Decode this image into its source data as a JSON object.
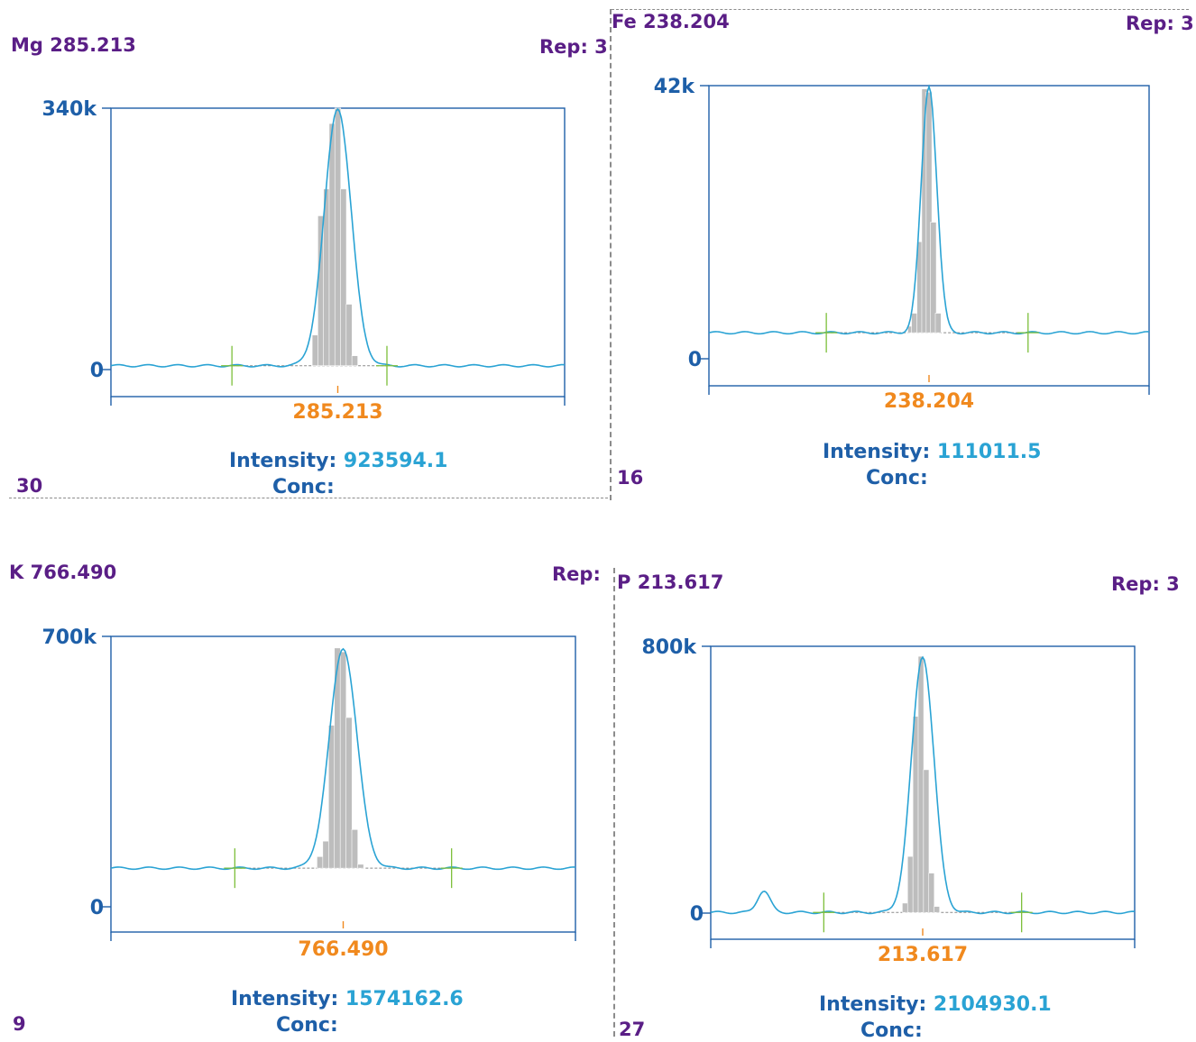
{
  "chart_data": [
    {
      "type": "line",
      "element": "Mg 285.213",
      "rep": "Rep: 3",
      "index": "30",
      "x_center_label": "285.213",
      "y_tick_labels": [
        "340k",
        "0"
      ],
      "ylim": [
        0,
        340000
      ],
      "intensity_label": "Intensity:",
      "intensity_value": "923594.1",
      "conc_label": "Conc:",
      "peak_height": 340000,
      "peak_width": 0.05,
      "baseline": 5000,
      "bars": [
        {
          "x": -0.07,
          "y": 5000
        },
        {
          "x": -0.06,
          "y": 45000
        },
        {
          "x": -0.045,
          "y": 200000
        },
        {
          "x": -0.03,
          "y": 235000
        },
        {
          "x": -0.015,
          "y": 320000
        },
        {
          "x": 0.0,
          "y": 340000
        },
        {
          "x": 0.015,
          "y": 235000
        },
        {
          "x": 0.03,
          "y": 85000
        },
        {
          "x": 0.045,
          "y": 18000
        }
      ],
      "xlim": [
        -0.6,
        0.6
      ],
      "markers_x": [
        -0.28,
        0.13
      ]
    },
    {
      "type": "line",
      "element": "Fe 238.204",
      "rep": "Rep: 3",
      "index": "16",
      "x_center_label": "238.204",
      "y_tick_labels": [
        "42k",
        "0"
      ],
      "ylim": [
        0,
        42000
      ],
      "intensity_label": "Intensity:",
      "intensity_value": "111011.5",
      "conc_label": "Conc:",
      "peak_height": 42000,
      "peak_width": 0.03,
      "baseline": 4000,
      "bars": [
        {
          "x": -0.05,
          "y": 5000
        },
        {
          "x": -0.04,
          "y": 7000
        },
        {
          "x": -0.025,
          "y": 18000
        },
        {
          "x": -0.012,
          "y": 41500
        },
        {
          "x": 0.0,
          "y": 41000
        },
        {
          "x": 0.012,
          "y": 21000
        },
        {
          "x": 0.025,
          "y": 7000
        }
      ],
      "xlim": [
        -0.6,
        0.6
      ],
      "markers_x": [
        -0.28,
        0.27
      ]
    },
    {
      "type": "line",
      "element": "K 766.490",
      "rep": "Rep:",
      "index": "9",
      "x_center_label": "766.490",
      "y_tick_labels": [
        "700k",
        "0"
      ],
      "ylim": [
        0,
        700000
      ],
      "intensity_label": "Intensity:",
      "intensity_value": "1574162.6",
      "conc_label": "Conc:",
      "peak_height": 670000,
      "peak_width": 0.05,
      "baseline": 100000,
      "bars": [
        {
          "x": -0.06,
          "y": 130000
        },
        {
          "x": -0.045,
          "y": 170000
        },
        {
          "x": -0.03,
          "y": 470000
        },
        {
          "x": -0.015,
          "y": 670000
        },
        {
          "x": 0.0,
          "y": 660000
        },
        {
          "x": 0.015,
          "y": 490000
        },
        {
          "x": 0.03,
          "y": 200000
        },
        {
          "x": 0.045,
          "y": 110000
        }
      ],
      "xlim": [
        -0.6,
        0.6
      ],
      "markers_x": [
        -0.28,
        0.28
      ]
    },
    {
      "type": "line",
      "element": "P 213.617",
      "rep": "Rep: 3",
      "index": "27",
      "x_center_label": "213.617",
      "y_tick_labels": [
        "800k",
        "0"
      ],
      "ylim": [
        0,
        800000
      ],
      "intensity_label": "Intensity:",
      "intensity_value": "2104930.1",
      "conc_label": "Conc:",
      "peak_height": 770000,
      "peak_width": 0.045,
      "baseline": 2000,
      "bars": [
        {
          "x": -0.05,
          "y": 30000
        },
        {
          "x": -0.035,
          "y": 170000
        },
        {
          "x": -0.02,
          "y": 590000
        },
        {
          "x": -0.005,
          "y": 770000
        },
        {
          "x": 0.01,
          "y": 430000
        },
        {
          "x": 0.025,
          "y": 120000
        },
        {
          "x": 0.04,
          "y": 20000
        }
      ],
      "xlim": [
        -0.6,
        0.6
      ],
      "markers_x": [
        -0.28,
        0.28
      ],
      "side_peak": {
        "x": -0.45,
        "y": 65000
      }
    }
  ],
  "colors": {
    "title": "#5a1e86",
    "axis": "#1e5fa8",
    "curve": "#2aa3d4",
    "bars": "#bdbdbd",
    "center_label": "#f0891e",
    "markers": "#7cbf3a"
  }
}
